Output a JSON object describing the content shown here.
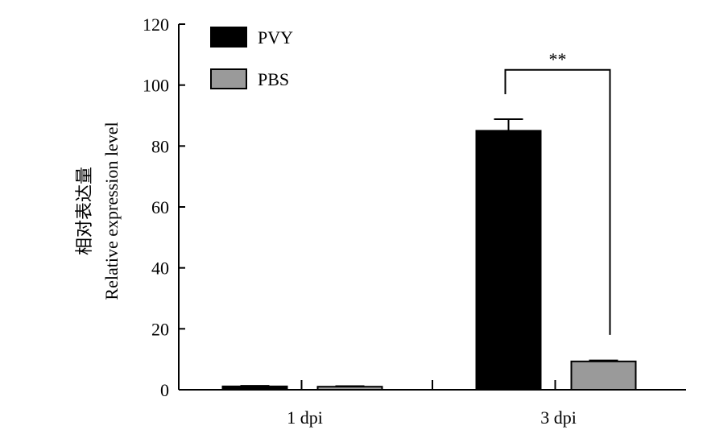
{
  "chart_data": {
    "type": "bar",
    "categories": [
      "1 dpi",
      "3 dpi"
    ],
    "series": [
      {
        "name": "PVY",
        "values": [
          1.1,
          85
        ],
        "errors": [
          0.2,
          3.8
        ],
        "color": "#000000"
      },
      {
        "name": "PBS",
        "values": [
          1.0,
          9.3
        ],
        "errors": [
          0.2,
          0.3
        ],
        "color": "#9a9a9a"
      }
    ],
    "ylabel_cn": "相对表达量",
    "ylabel_en": "Relative expression level",
    "ylim": [
      0,
      120
    ],
    "yticks": [
      0,
      20,
      40,
      60,
      80,
      100,
      120
    ],
    "legend_position": "top-left",
    "annotations": [
      {
        "category": "3 dpi",
        "text": "**"
      }
    ],
    "grid": false
  }
}
